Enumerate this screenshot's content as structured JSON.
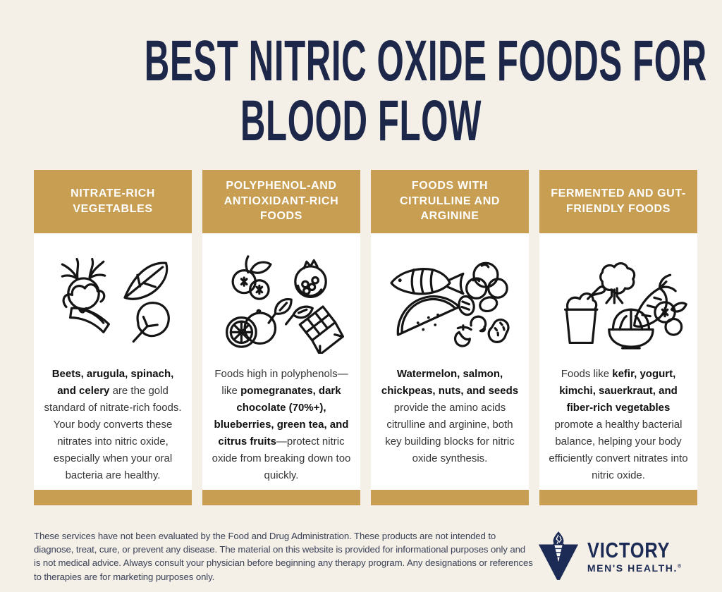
{
  "colors": {
    "background": "#f4efe7",
    "gold": "#c79e52",
    "navy": "#1c2749",
    "card": "#ffffff",
    "body_text": "#363636"
  },
  "title": {
    "line1": "BEST NITRIC OXIDE FOODS FOR",
    "line2": "BLOOD FLOW"
  },
  "columns": [
    {
      "header": "NITRATE-RICH VEGETABLES",
      "icons": [
        "beet-icon",
        "arugula-leaf-icon",
        "celery-icon",
        "spinach-leaf-icon"
      ],
      "body_segments": [
        {
          "text": "Beets, arugula, spinach, and celery",
          "bold": true
        },
        {
          "text": " are the gold standard of nitrate-rich foods. Your body converts these nitrates into nitric oxide, especially when your oral bacteria are healthy.",
          "bold": false
        }
      ]
    },
    {
      "header": "POLYPHENOL-AND ANTIOXIDANT-RICH FOODS",
      "icons": [
        "blueberries-icon",
        "pomegranate-icon",
        "tea-leaves-icon",
        "citrus-orange-icon",
        "dark-chocolate-icon"
      ],
      "body_segments": [
        {
          "text": "Foods high in polyphenols—like ",
          "bold": false
        },
        {
          "text": "pomegranates, dark chocolate (70%+), blueberries, green tea, and citrus fruits",
          "bold": true
        },
        {
          "text": "—protect nitric oxide from breaking down too quickly.",
          "bold": false
        }
      ]
    },
    {
      "header": "FOODS WITH CITRULLINE AND ARGININE",
      "icons": [
        "salmon-fish-icon",
        "chickpeas-icon",
        "watermelon-slice-icon",
        "nuts-seeds-icon"
      ],
      "body_segments": [
        {
          "text": "Watermelon, salmon, chickpeas, nuts, and seeds",
          "bold": true
        },
        {
          "text": " provide the amino acids citrulline and arginine, both key building blocks for nitric oxide synthesis.",
          "bold": false
        }
      ]
    },
    {
      "header": "FERMENTED AND GUT-FRIENDLY FOODS",
      "icons": [
        "yogurt-cup-icon",
        "broccoli-icon",
        "carrot-icon",
        "fermented-bowl-icon",
        "berries-icon"
      ],
      "body_segments": [
        {
          "text": "Foods like ",
          "bold": false
        },
        {
          "text": "kefir, yogurt, kimchi, sauerkraut, and fiber-rich vegetables",
          "bold": true
        },
        {
          "text": " promote a healthy bacterial balance, helping your body efficiently convert nitrates into nitric oxide.",
          "bold": false
        }
      ]
    }
  ],
  "footer": {
    "disclaimer": "These services have not been evaluated by the Food and Drug Administration. These products are not intended to diagnose, treat, cure, or prevent any disease. The material on this website is provided for informational purposes only and is not medical advice. Always consult your physician before beginning any therapy program. Any designations or references to therapies are for marketing purposes only.",
    "brand_name": "VICTORY",
    "brand_subtitle": "MEN'S HEALTH.",
    "registered_mark": "®"
  }
}
